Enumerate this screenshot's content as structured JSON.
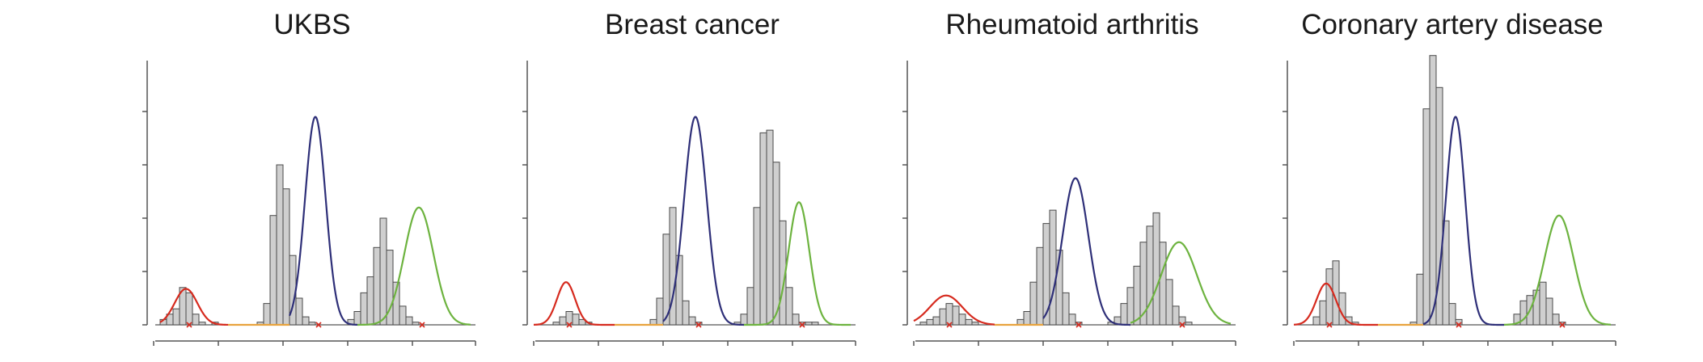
{
  "chart_data": [
    {
      "type": "bar",
      "title": "UKBS",
      "ylim": [
        0,
        100
      ],
      "x": [
        4.0,
        4.2,
        4.4,
        4.6,
        4.8,
        5.0,
        5.2,
        5.4,
        5.6,
        5.8,
        6.0,
        6.2,
        6.4,
        6.6,
        6.8,
        7.0,
        7.2,
        7.4,
        7.6,
        7.8,
        8.0,
        8.2,
        8.4,
        8.6,
        8.8,
        9.0,
        9.2,
        9.4,
        9.6,
        9.8,
        10.0,
        10.2,
        10.4,
        10.6,
        10.8,
        11.0,
        11.2,
        11.4,
        11.6,
        11.8,
        12.0,
        12.2,
        12.4,
        12.6,
        12.8,
        13.0,
        13.2,
        13.4,
        13.6,
        13.8
      ],
      "values": [
        0,
        2,
        4,
        6,
        14,
        12,
        4,
        1,
        0,
        1,
        0,
        0,
        0,
        0,
        0,
        0,
        1,
        8,
        41,
        60,
        51,
        26,
        10,
        3,
        1,
        0,
        0,
        0,
        0,
        0,
        2,
        5,
        12,
        18,
        29,
        40,
        28,
        16,
        7,
        3,
        1,
        0,
        0,
        0,
        0,
        0,
        0,
        0,
        0,
        0
      ],
      "bin_width": 0.2,
      "peak_markers": [
        5.0,
        9.0,
        12.2
      ],
      "series": [
        {
          "color": "#d62a1e",
          "mean": 5.0,
          "sd": 0.35,
          "height": 13.5,
          "x_min": 4.2,
          "x_max": 6.3
        },
        {
          "color": "#e8a33d",
          "mean": 7.0,
          "sd": 0.3,
          "height": 0,
          "x_min": 6.3,
          "x_max": 8.2
        },
        {
          "color": "#2e2f78",
          "mean": 9.0,
          "sd": 0.32,
          "height": 78,
          "x_min": 8.2,
          "x_max": 10.3
        },
        {
          "color": "#6db33f",
          "mean": 12.2,
          "sd": 0.45,
          "height": 44,
          "x_min": 10.3,
          "x_max": 13.8
        }
      ]
    },
    {
      "type": "bar",
      "title": "Breast cancer",
      "ylim": [
        0,
        100
      ],
      "x": [
        4.0,
        4.2,
        4.4,
        4.6,
        4.8,
        5.0,
        5.2,
        5.4,
        5.6,
        5.8,
        6.0,
        6.2,
        6.4,
        6.6,
        6.8,
        7.0,
        7.2,
        7.4,
        7.6,
        7.8,
        8.0,
        8.2,
        8.4,
        8.6,
        8.8,
        9.0,
        9.2,
        9.4,
        9.6,
        9.8,
        10.0,
        10.2,
        10.4,
        10.6,
        10.8,
        11.0,
        11.2,
        11.4,
        11.6,
        11.8,
        12.0,
        12.2,
        12.4,
        12.6,
        12.8,
        13.0,
        13.2,
        13.4,
        13.6,
        13.8
      ],
      "values": [
        0,
        0,
        0,
        1,
        3,
        5,
        4,
        2,
        1,
        0,
        0,
        0,
        0,
        0,
        0,
        0,
        0,
        0,
        2,
        10,
        34,
        44,
        26,
        9,
        3,
        1,
        0,
        0,
        0,
        0,
        0,
        1,
        4,
        14,
        44,
        72,
        73,
        61,
        39,
        14,
        4,
        1,
        1,
        1,
        0,
        0,
        0,
        0,
        0,
        0
      ],
      "bin_width": 0.2,
      "peak_markers": [
        5.0,
        9.0,
        12.2
      ],
      "series": [
        {
          "color": "#d62a1e",
          "mean": 5.0,
          "sd": 0.28,
          "height": 16,
          "x_min": 4.0,
          "x_max": 6.5
        },
        {
          "color": "#e8a33d",
          "mean": 7.0,
          "sd": 0.3,
          "height": 0,
          "x_min": 6.5,
          "x_max": 8.0
        },
        {
          "color": "#2e2f78",
          "mean": 9.0,
          "sd": 0.35,
          "height": 78,
          "x_min": 8.0,
          "x_max": 10.5
        },
        {
          "color": "#6db33f",
          "mean": 12.2,
          "sd": 0.32,
          "height": 46,
          "x_min": 10.5,
          "x_max": 13.8
        }
      ]
    },
    {
      "type": "bar",
      "title": "Rheumatoid arthritis",
      "ylim": [
        0,
        100
      ],
      "x": [
        4.0,
        4.2,
        4.4,
        4.6,
        4.8,
        5.0,
        5.2,
        5.4,
        5.6,
        5.8,
        6.0,
        6.2,
        6.4,
        6.6,
        6.8,
        7.0,
        7.2,
        7.4,
        7.6,
        7.8,
        8.0,
        8.2,
        8.4,
        8.6,
        8.8,
        9.0,
        9.2,
        9.4,
        9.6,
        9.8,
        10.0,
        10.2,
        10.4,
        10.6,
        10.8,
        11.0,
        11.2,
        11.4,
        11.6,
        11.8,
        12.0,
        12.2,
        12.4,
        12.6,
        12.8,
        13.0,
        13.2,
        13.4,
        13.6,
        13.8
      ],
      "values": [
        0,
        1,
        2,
        3,
        6,
        8,
        7,
        4,
        2,
        1,
        0,
        0,
        0,
        0,
        0,
        0,
        2,
        5,
        16,
        29,
        38,
        43,
        28,
        12,
        4,
        1,
        0,
        0,
        0,
        0,
        1,
        3,
        8,
        14,
        22,
        31,
        37,
        42,
        31,
        17,
        7,
        3,
        1,
        0,
        0,
        0,
        0,
        0,
        0,
        0
      ],
      "bin_width": 0.2,
      "peak_markers": [
        5.0,
        9.0,
        12.2
      ],
      "series": [
        {
          "color": "#d62a1e",
          "mean": 5.0,
          "sd": 0.5,
          "height": 11,
          "x_min": 4.0,
          "x_max": 6.5
        },
        {
          "color": "#e8a33d",
          "mean": 7.0,
          "sd": 0.3,
          "height": 0,
          "x_min": 6.5,
          "x_max": 8.0
        },
        {
          "color": "#2e2f78",
          "mean": 9.0,
          "sd": 0.4,
          "height": 55,
          "x_min": 8.0,
          "x_max": 10.7
        },
        {
          "color": "#6db33f",
          "mean": 12.2,
          "sd": 0.55,
          "height": 31,
          "x_min": 10.7,
          "x_max": 13.8
        }
      ]
    },
    {
      "type": "bar",
      "title": "Coronary artery disease",
      "ylim": [
        0,
        100
      ],
      "x": [
        4.0,
        4.2,
        4.4,
        4.6,
        4.8,
        5.0,
        5.2,
        5.4,
        5.6,
        5.8,
        6.0,
        6.2,
        6.4,
        6.6,
        6.8,
        7.0,
        7.2,
        7.4,
        7.6,
        7.8,
        8.0,
        8.2,
        8.4,
        8.6,
        8.8,
        9.0,
        9.2,
        9.4,
        9.6,
        9.8,
        10.0,
        10.2,
        10.4,
        10.6,
        10.8,
        11.0,
        11.2,
        11.4,
        11.6,
        11.8,
        12.0,
        12.2,
        12.4,
        12.6,
        12.8,
        13.0,
        13.2,
        13.4,
        13.6,
        13.8
      ],
      "values": [
        0,
        0,
        0,
        3,
        9,
        21,
        24,
        12,
        3,
        1,
        0,
        0,
        0,
        0,
        0,
        0,
        0,
        0,
        1,
        19,
        81,
        101,
        89,
        39,
        8,
        2,
        0,
        0,
        0,
        0,
        0,
        0,
        0,
        0,
        4,
        9,
        11,
        13,
        16,
        10,
        4,
        1,
        0,
        0,
        0,
        0,
        0,
        0,
        0,
        0
      ],
      "bin_width": 0.2,
      "peak_markers": [
        5.0,
        9.0,
        12.2
      ],
      "series": [
        {
          "color": "#d62a1e",
          "mean": 5.0,
          "sd": 0.3,
          "height": 15.5,
          "x_min": 4.0,
          "x_max": 6.6
        },
        {
          "color": "#e8a33d",
          "mean": 7.0,
          "sd": 0.3,
          "height": 0,
          "x_min": 6.6,
          "x_max": 8.0
        },
        {
          "color": "#2e2f78",
          "mean": 9.0,
          "sd": 0.3,
          "height": 78,
          "x_min": 8.0,
          "x_max": 10.5
        },
        {
          "color": "#6db33f",
          "mean": 12.2,
          "sd": 0.45,
          "height": 41,
          "x_min": 10.5,
          "x_max": 13.8
        }
      ]
    }
  ]
}
